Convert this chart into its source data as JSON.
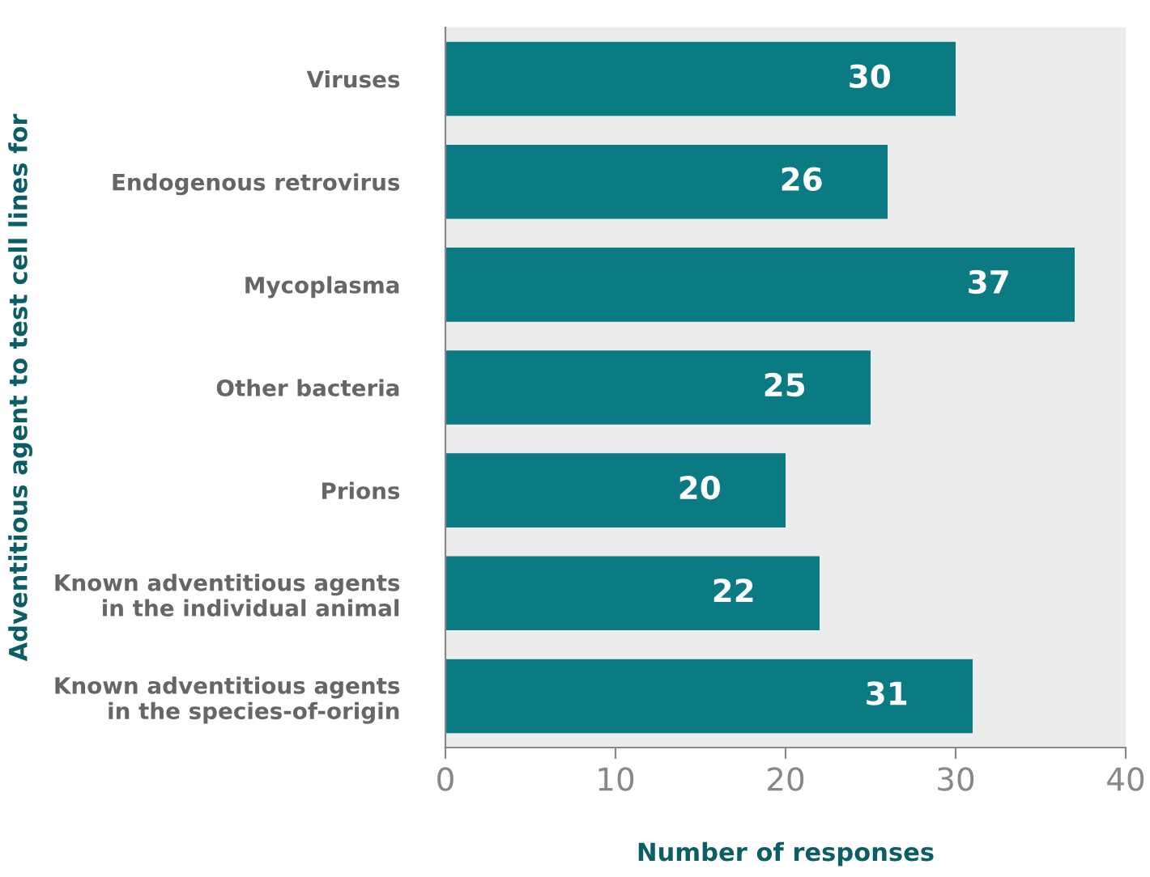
{
  "chart_data": {
    "type": "bar",
    "orientation": "horizontal",
    "xlabel": "Number of responses",
    "ylabel": "Adventitious agent to test cell lines for",
    "categories": [
      "Viruses",
      "Endogenous retrovirus",
      "Mycoplasma",
      "Other bacteria",
      "Prions",
      "Known adventitious agents\nin the individual animal",
      "Known adventitious agents\nin the species-of-origin"
    ],
    "values": [
      30,
      26,
      37,
      25,
      20,
      22,
      31
    ],
    "color": "#0a7b83",
    "xlim": [
      0,
      40
    ],
    "xticks": [
      0,
      10,
      20,
      30,
      40
    ],
    "data_labels": true,
    "grid": false,
    "legend": false
  }
}
